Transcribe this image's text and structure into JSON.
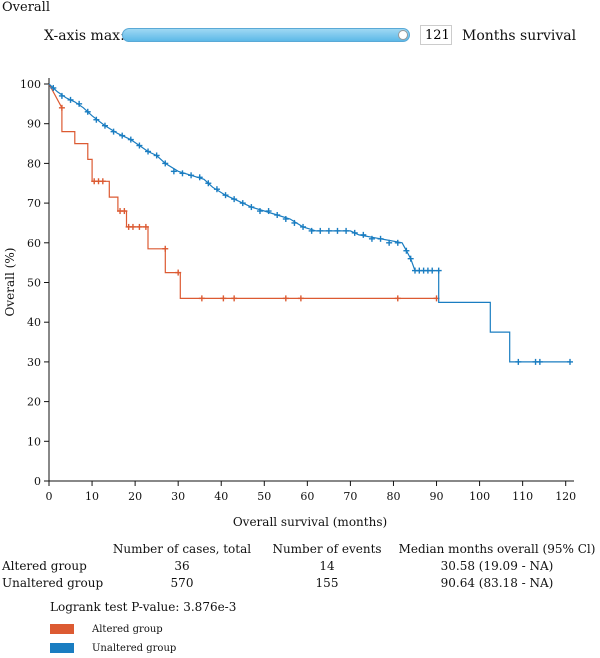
{
  "page": {
    "title": "Overall"
  },
  "controls": {
    "xaxis_label": "X-axis max:",
    "xaxis_max_value": "121",
    "months_label": "Months survival",
    "slider_fraction": 1.0
  },
  "chart_data": {
    "type": "line",
    "xlabel": "Overall survival (months)",
    "ylabel": "Overall (%)",
    "xlim": [
      0,
      121
    ],
    "ylim": [
      0,
      100
    ],
    "xticks": [
      0,
      10,
      20,
      30,
      40,
      50,
      60,
      70,
      80,
      90,
      100,
      110,
      120
    ],
    "yticks": [
      0,
      10,
      20,
      30,
      40,
      50,
      60,
      70,
      80,
      90,
      100
    ],
    "series": [
      {
        "name": "Altered group",
        "color": "#dc5a32",
        "steps": [
          [
            0,
            100
          ],
          [
            3,
            94
          ],
          [
            3,
            88
          ],
          [
            6,
            88
          ],
          [
            6,
            85
          ],
          [
            9,
            85
          ],
          [
            9,
            81
          ],
          [
            10,
            81
          ],
          [
            10,
            75.5
          ],
          [
            14,
            75.5
          ],
          [
            14,
            71.5
          ],
          [
            16,
            71.5
          ],
          [
            16,
            68
          ],
          [
            18,
            68
          ],
          [
            18,
            64
          ],
          [
            23,
            64
          ],
          [
            23,
            58.5
          ],
          [
            27,
            58.5
          ],
          [
            27,
            52.5
          ],
          [
            30.5,
            52.5
          ],
          [
            30.5,
            46
          ],
          [
            90,
            46
          ]
        ],
        "censors": [
          [
            3,
            94
          ],
          [
            10.5,
            75.5
          ],
          [
            11.5,
            75.5
          ],
          [
            12.5,
            75.5
          ],
          [
            16.5,
            68
          ],
          [
            17.5,
            68
          ],
          [
            18.5,
            64
          ],
          [
            19.5,
            64
          ],
          [
            21,
            64
          ],
          [
            22.5,
            64
          ],
          [
            27,
            58.5
          ],
          [
            30,
            52.5
          ],
          [
            35.5,
            46
          ],
          [
            40.5,
            46
          ],
          [
            43,
            46
          ],
          [
            55,
            46
          ],
          [
            58.5,
            46
          ],
          [
            81,
            46
          ],
          [
            90,
            46
          ]
        ]
      },
      {
        "name": "Unaltered group",
        "color": "#1a7dc1",
        "points": [
          [
            0,
            100
          ],
          [
            1,
            99
          ],
          [
            2,
            98
          ],
          [
            4,
            96.5
          ],
          [
            6,
            95.5
          ],
          [
            8,
            94
          ],
          [
            10,
            92
          ],
          [
            13,
            89.5
          ],
          [
            16,
            87.5
          ],
          [
            19,
            86
          ],
          [
            21,
            84.5
          ],
          [
            23,
            83
          ],
          [
            25,
            82
          ],
          [
            27,
            80
          ],
          [
            30,
            78
          ],
          [
            33,
            77
          ],
          [
            36,
            76
          ],
          [
            38,
            74
          ],
          [
            41,
            72
          ],
          [
            44,
            70.5
          ],
          [
            47,
            69
          ],
          [
            50,
            68
          ],
          [
            53,
            67
          ],
          [
            56,
            66
          ],
          [
            59,
            64
          ],
          [
            62,
            63
          ],
          [
            70,
            63
          ],
          [
            72,
            62
          ],
          [
            77,
            61
          ],
          [
            82,
            60
          ],
          [
            83,
            58
          ],
          [
            84,
            56
          ],
          [
            85,
            53
          ],
          [
            90.5,
            53
          ],
          [
            90.5,
            45
          ],
          [
            102.5,
            45
          ],
          [
            102.5,
            37.5
          ],
          [
            107,
            37.5
          ],
          [
            107,
            30
          ],
          [
            121,
            30
          ]
        ],
        "censors": [
          [
            1,
            99
          ],
          [
            3,
            97
          ],
          [
            5,
            96
          ],
          [
            7,
            95
          ],
          [
            9,
            93
          ],
          [
            11,
            91
          ],
          [
            13,
            89.5
          ],
          [
            15,
            88
          ],
          [
            17,
            87
          ],
          [
            19,
            86
          ],
          [
            21,
            84.5
          ],
          [
            23,
            83
          ],
          [
            25,
            82
          ],
          [
            27,
            80
          ],
          [
            29,
            78
          ],
          [
            31,
            77.5
          ],
          [
            33,
            77
          ],
          [
            35,
            76.5
          ],
          [
            37,
            75
          ],
          [
            39,
            73.5
          ],
          [
            41,
            72
          ],
          [
            43,
            71
          ],
          [
            45,
            70
          ],
          [
            47,
            69
          ],
          [
            49,
            68
          ],
          [
            51,
            68
          ],
          [
            53,
            67
          ],
          [
            55,
            66
          ],
          [
            57,
            65
          ],
          [
            59,
            64
          ],
          [
            61,
            63
          ],
          [
            63,
            63
          ],
          [
            65,
            63
          ],
          [
            67,
            63
          ],
          [
            69,
            63
          ],
          [
            71,
            62.5
          ],
          [
            73,
            62
          ],
          [
            75,
            61
          ],
          [
            77,
            61
          ],
          [
            79,
            60
          ],
          [
            81,
            60
          ],
          [
            83,
            58
          ],
          [
            84,
            56
          ],
          [
            85,
            53
          ],
          [
            86,
            53
          ],
          [
            87,
            53
          ],
          [
            88,
            53
          ],
          [
            89,
            53
          ],
          [
            90.5,
            53
          ],
          [
            109,
            30
          ],
          [
            113,
            30
          ],
          [
            114,
            30
          ],
          [
            121,
            30
          ]
        ]
      }
    ]
  },
  "stats": {
    "headers": [
      "Number of cases, total",
      "Number of events",
      "Median months overall (95% Cl)"
    ],
    "rows": [
      {
        "group": "Altered group",
        "cases": "36",
        "events": "14",
        "median": "30.58 (19.09 - NA)"
      },
      {
        "group": "Unaltered group",
        "cases": "570",
        "events": "155",
        "median": "90.64 (83.18 - NA)"
      }
    ]
  },
  "logrank": "Logrank test P-value: 3.876e-3",
  "legend": [
    {
      "label": "Altered group",
      "color": "#dc5a32"
    },
    {
      "label": "Unaltered group",
      "color": "#1a7dc1"
    }
  ]
}
